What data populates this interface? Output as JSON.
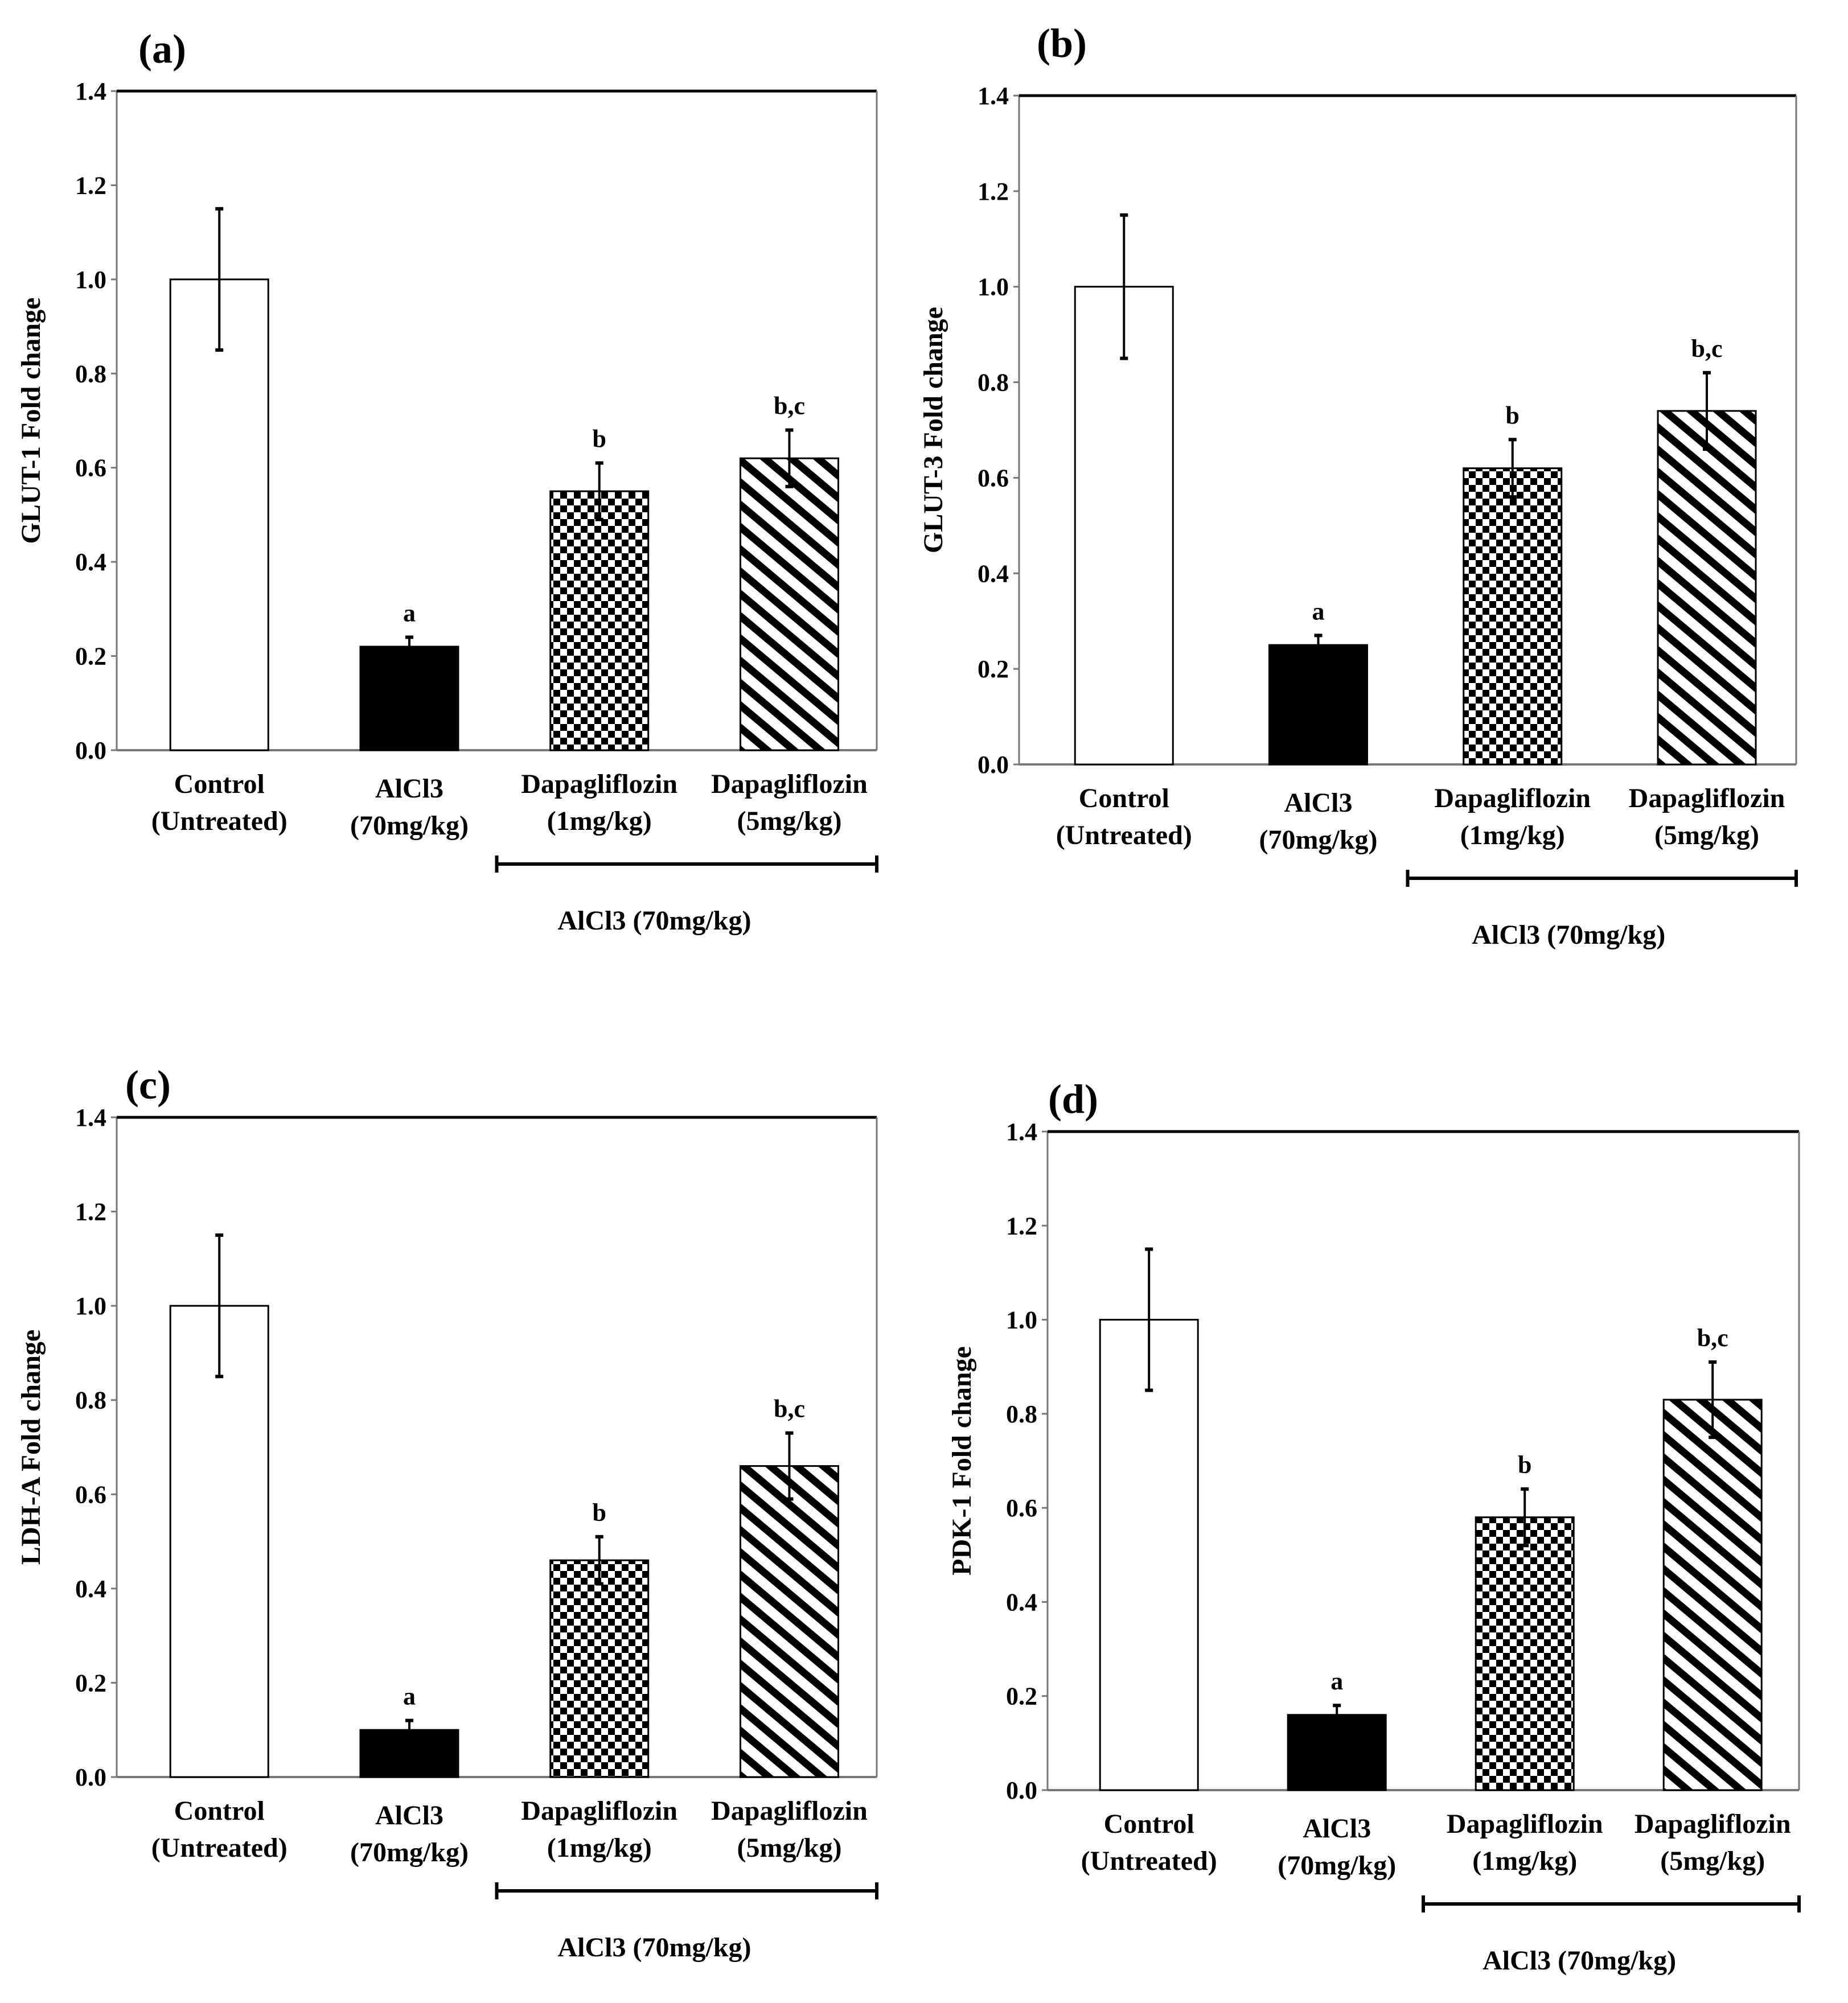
{
  "patterns": {
    "Control (Untreated)": "white",
    "AlCl3 (70mg/kg)": "black",
    "Dapagliflozin (1mg/kg)": "checker",
    "Dapagliflozin (5mg/kg)": "diagonal"
  },
  "colors": {
    "ink": "#000000",
    "paper": "#ffffff"
  },
  "chart_data": [
    {
      "type": "bar",
      "panel_label": "(a)",
      "ylabel": "GLUT-1 Fold change",
      "ylim": [
        0,
        1.4
      ],
      "yticks": [
        "0.0",
        "0.2",
        "0.4",
        "0.6",
        "0.8",
        "1.0",
        "1.2",
        "1.4"
      ],
      "categories": [
        [
          "Control",
          "(Untreated)"
        ],
        [
          "AlCl3",
          "(70mg/kg)"
        ],
        [
          "Dapagliflozin",
          "(1mg/kg)"
        ],
        [
          "Dapagliflozin",
          "(5mg/kg)"
        ]
      ],
      "values": [
        1.0,
        0.22,
        0.55,
        0.62
      ],
      "errors": [
        0.15,
        0.02,
        0.06,
        0.06
      ],
      "annotations": [
        "",
        "a",
        "b",
        "b,c"
      ],
      "group_label": "AlCl3 (70mg/kg)"
    },
    {
      "type": "bar",
      "panel_label": "(b)",
      "ylabel": "GLUT-3 Fold change",
      "ylim": [
        0,
        1.4
      ],
      "yticks": [
        "0.0",
        "0.2",
        "0.4",
        "0.6",
        "0.8",
        "1.0",
        "1.2",
        "1.4"
      ],
      "categories": [
        [
          "Control",
          "(Untreated)"
        ],
        [
          "AlCl3",
          "(70mg/kg)"
        ],
        [
          "Dapagliflozin",
          "(1mg/kg)"
        ],
        [
          "Dapagliflozin",
          "(5mg/kg)"
        ]
      ],
      "values": [
        1.0,
        0.25,
        0.62,
        0.74
      ],
      "errors": [
        0.15,
        0.02,
        0.06,
        0.08
      ],
      "annotations": [
        "",
        "a",
        "b",
        "b,c"
      ],
      "group_label": "AlCl3 (70mg/kg)"
    },
    {
      "type": "bar",
      "panel_label": "(c)",
      "ylabel": "LDH-A Fold change",
      "ylim": [
        0,
        1.4
      ],
      "yticks": [
        "0.0",
        "0.2",
        "0.4",
        "0.6",
        "0.8",
        "1.0",
        "1.2",
        "1.4"
      ],
      "categories": [
        [
          "Control",
          "(Untreated)"
        ],
        [
          "AlCl3",
          "(70mg/kg)"
        ],
        [
          "Dapagliflozin",
          "(1mg/kg)"
        ],
        [
          "Dapagliflozin",
          "(5mg/kg)"
        ]
      ],
      "values": [
        1.0,
        0.1,
        0.46,
        0.66
      ],
      "errors": [
        0.15,
        0.02,
        0.05,
        0.07
      ],
      "annotations": [
        "",
        "a",
        "b",
        "b,c"
      ],
      "group_label": "AlCl3 (70mg/kg)"
    },
    {
      "type": "bar",
      "panel_label": "(d)",
      "ylabel": "PDK-1 Fold change",
      "ylim": [
        0,
        1.4
      ],
      "yticks": [
        "0.0",
        "0.2",
        "0.4",
        "0.6",
        "0.8",
        "1.0",
        "1.2",
        "1.4"
      ],
      "categories": [
        [
          "Control",
          "(Untreated)"
        ],
        [
          "AlCl3",
          "(70mg/kg)"
        ],
        [
          "Dapagliflozin",
          "(1mg/kg)"
        ],
        [
          "Dapagliflozin",
          "(5mg/kg)"
        ]
      ],
      "values": [
        1.0,
        0.16,
        0.58,
        0.83
      ],
      "errors": [
        0.15,
        0.02,
        0.06,
        0.08
      ],
      "annotations": [
        "",
        "a",
        "b",
        "b,c"
      ],
      "group_label": "AlCl3 (70mg/kg)"
    }
  ]
}
